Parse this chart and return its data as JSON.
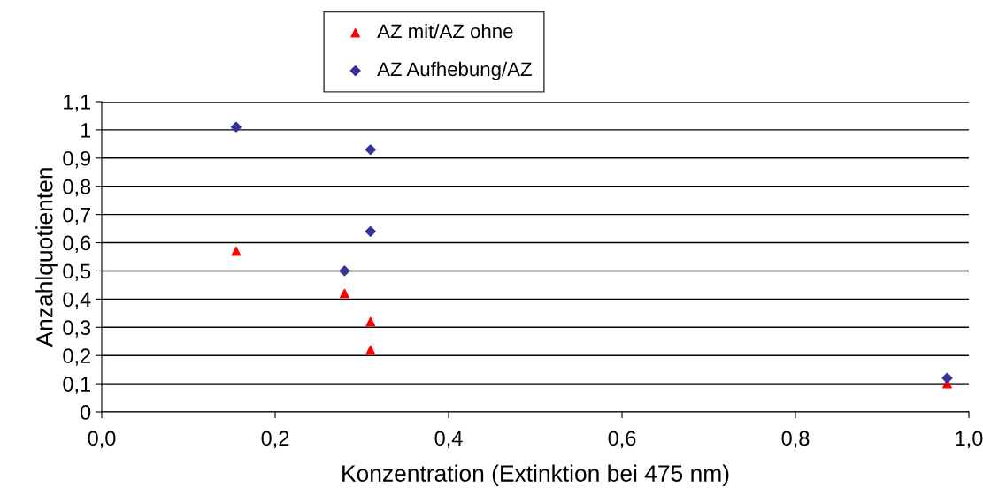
{
  "chart_data": {
    "type": "scatter",
    "xlabel": "Konzentration (Extinktion bei 475 nm)",
    "ylabel": "Anzahlquotienten",
    "xlim": [
      0,
      1
    ],
    "ylim": [
      0,
      1.1
    ],
    "xticks": [
      {
        "value": 0,
        "label": "0,0"
      },
      {
        "value": 0.2,
        "label": "0,2"
      },
      {
        "value": 0.4,
        "label": "0,4"
      },
      {
        "value": 0.6,
        "label": "0,6"
      },
      {
        "value": 0.8,
        "label": "0,8"
      },
      {
        "value": 1,
        "label": "1,0"
      }
    ],
    "yticks": [
      0,
      {
        "value": 0.1,
        "label": "0,1"
      },
      {
        "value": 0.2,
        "label": "0,2"
      },
      {
        "value": 0.3,
        "label": "0,3"
      },
      {
        "value": 0.4,
        "label": "0,4"
      },
      {
        "value": 0.5,
        "label": "0,5"
      },
      {
        "value": 0.6,
        "label": "0,6"
      },
      {
        "value": 0.7,
        "label": "0,7"
      },
      {
        "value": 0.8,
        "label": "0,8"
      },
      {
        "value": 0.9,
        "label": "0,9"
      },
      1,
      {
        "value": 1.1,
        "label": "1,1"
      }
    ],
    "grid": "y",
    "legend": "top",
    "series": [
      {
        "name": "AZ mit/AZ ohne",
        "color": "#ff0000",
        "marker": "triangle",
        "x": [
          0.155,
          0.28,
          0.31,
          0.31,
          0.975
        ],
        "values": [
          0.57,
          0.42,
          0.32,
          0.22,
          0.1
        ]
      },
      {
        "name": "AZ Aufhebung/AZ",
        "color": "#333399",
        "marker": "diamond",
        "x": [
          0.155,
          0.31,
          0.31,
          0.28,
          0.975
        ],
        "values": [
          1.01,
          0.93,
          0.64,
          0.5,
          0.12
        ]
      }
    ]
  }
}
